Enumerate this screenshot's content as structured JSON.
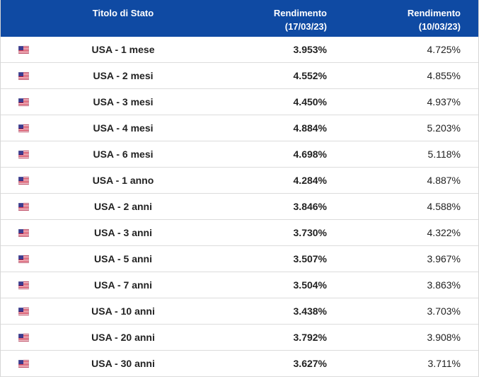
{
  "header": [
    {
      "lines": [
        "Titolo di Stato"
      ]
    },
    {
      "lines": [
        "Rendimento",
        "(17/03/23)"
      ]
    },
    {
      "lines": [
        "Rendimento",
        "(10/03/23)"
      ]
    }
  ],
  "rows": [
    [
      "USA - 1 mese",
      "3.953%",
      "4.725%"
    ],
    [
      "USA - 2 mesi",
      "4.552%",
      "4.855%"
    ],
    [
      "USA - 3 mesi",
      "4.450%",
      "4.937%"
    ],
    [
      "USA - 4 mesi",
      "4.884%",
      "5.203%"
    ],
    [
      "USA - 6 mesi",
      "4.698%",
      "5.118%"
    ],
    [
      "USA - 1 anno",
      "4.284%",
      "4.887%"
    ],
    [
      "USA - 2 anni",
      "3.846%",
      "4.588%"
    ],
    [
      "USA - 3 anni",
      "3.730%",
      "4.322%"
    ],
    [
      "USA - 5 anni",
      "3.507%",
      "3.967%"
    ],
    [
      "USA - 7 anni",
      "3.504%",
      "3.863%"
    ],
    [
      "USA - 10 anni",
      "3.438%",
      "3.703%"
    ],
    [
      "USA - 20 anni",
      "3.792%",
      "3.908%"
    ],
    [
      "USA - 30 anni",
      "3.627%",
      "3.711%"
    ]
  ]
}
